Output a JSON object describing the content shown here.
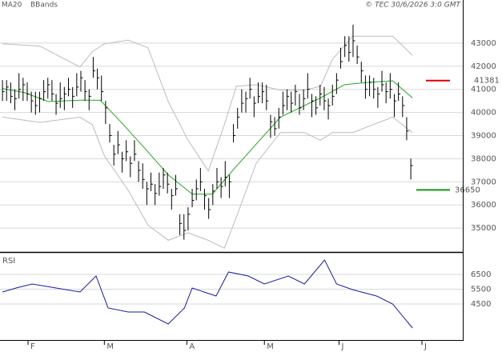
{
  "header": {
    "copyright": "© TEC 30/6/2026 3:0 GMT"
  },
  "chart_data": [
    {
      "type": "ohlc",
      "xlim": [
        -0.6,
        111.6
      ],
      "ylim": [
        34000,
        44450
      ],
      "yticks": [
        35000,
        36000,
        37000,
        38000,
        39000,
        40000,
        41000,
        42000,
        43000
      ],
      "grid": true,
      "bar_color": "#000000",
      "high": [
        41400,
        41400,
        41300,
        41000,
        41700,
        41500,
        41300,
        40900,
        40900,
        40900,
        41400,
        41500,
        41400,
        40800,
        41300,
        41100,
        41500,
        41100,
        41700,
        41800,
        41400,
        41000,
        42400,
        41900,
        41600,
        40500,
        39500,
        38600,
        39200,
        38300,
        38800,
        38100,
        38800,
        37900,
        37800,
        37000,
        37400,
        36900,
        37400,
        37600,
        37400,
        36700,
        37300,
        35600,
        35600,
        35900,
        36700,
        37100,
        37600,
        36700,
        36300,
        36900,
        37600,
        37200,
        37900,
        37300,
        39500,
        40200,
        41000,
        40900,
        41500,
        40700,
        41300,
        41300,
        41200,
        39900,
        39800,
        40200,
        40900,
        41000,
        40900,
        41200,
        40800,
        41000,
        41700,
        40800,
        40700,
        41200,
        41100,
        40600,
        41200,
        41700,
        42800,
        43300,
        43300,
        43800,
        42900,
        42200,
        41600,
        41600,
        41500,
        41100,
        41800,
        41300,
        41700,
        40800,
        41300,
        40700,
        39800,
        38000
      ],
      "low": [
        40500,
        40500,
        40400,
        40100,
        40600,
        40500,
        40500,
        40000,
        39900,
        40000,
        40500,
        40600,
        40500,
        39900,
        40200,
        40100,
        40700,
        40200,
        40700,
        40900,
        40500,
        40100,
        41500,
        41000,
        40500,
        39500,
        38700,
        37700,
        38200,
        37400,
        37900,
        37200,
        37900,
        37000,
        36700,
        36000,
        36600,
        36000,
        36400,
        36700,
        36500,
        35800,
        36400,
        34700,
        34500,
        34900,
        35900,
        36200,
        36600,
        35800,
        35400,
        36000,
        36700,
        36300,
        36800,
        36300,
        38700,
        39300,
        40000,
        40000,
        40600,
        39800,
        40400,
        40400,
        40100,
        38900,
        39000,
        39300,
        39900,
        40100,
        40000,
        40300,
        39900,
        40100,
        40600,
        39800,
        39900,
        40300,
        40100,
        39700,
        40300,
        40800,
        41900,
        42400,
        42200,
        42400,
        42100,
        41300,
        40600,
        40700,
        40600,
        40200,
        40900,
        40400,
        40600,
        39800,
        40500,
        39800,
        38800,
        37100
      ],
      "close": [
        40900,
        41100,
        40700,
        40600,
        41000,
        41200,
        40800,
        40500,
        40300,
        40600,
        40900,
        41200,
        40800,
        40400,
        40600,
        40800,
        41000,
        40700,
        41100,
        41500,
        40900,
        40700,
        41800,
        41500,
        40900,
        40200,
        39000,
        38200,
        38600,
        38000,
        38300,
        37800,
        38200,
        37500,
        37100,
        36700,
        36900,
        36500,
        36800,
        37300,
        36900,
        36400,
        36700,
        35200,
        34900,
        35600,
        36200,
        36700,
        37000,
        36400,
        35800,
        36600,
        37000,
        36800,
        37200,
        37000,
        39000,
        39800,
        40400,
        40600,
        41000,
        40400,
        40700,
        40900,
        40500,
        39600,
        39300,
        39800,
        40300,
        40700,
        40400,
        40900,
        40200,
        40600,
        41000,
        40500,
        40200,
        40800,
        40500,
        40300,
        40700,
        41400,
        42200,
        42900,
        42600,
        43100,
        42400,
        41800,
        41000,
        41300,
        41000,
        40800,
        41200,
        40900,
        41000,
        40500,
        40800,
        40300,
        39200,
        37700
      ],
      "series": [
        {
          "name": "MA20",
          "color": "#22aa22",
          "x": [
            0,
            5.2,
            11.1,
            18.8,
            23.7,
            28.5,
            34.4,
            40.2,
            46,
            50.9,
            55.7,
            61.5,
            67.4,
            73.2,
            77.1,
            82.9,
            88.7,
            94.6,
            99.4
          ],
          "values": [
            41030,
            40870,
            40470,
            40530,
            40530,
            39630,
            38470,
            37300,
            36470,
            36470,
            37470,
            38630,
            39800,
            40300,
            40630,
            41200,
            41300,
            41370,
            40630
          ]
        },
        {
          "name": "BBands",
          "color": "#bbbbbb",
          "x": [
            0,
            9.1,
            18.8,
            21.8,
            24.7,
            30.5,
            35.3,
            40.2,
            45,
            49.9,
            53.8,
            56.7,
            61.5,
            67.4,
            73.2,
            77.1,
            80,
            84.9,
            94.6,
            99.4
          ],
          "upper": [
            42970,
            42870,
            41970,
            42630,
            42970,
            43130,
            42800,
            40470,
            38800,
            37470,
            39470,
            41130,
            41200,
            40970,
            40970,
            41130,
            42300,
            43300,
            43300,
            42470
          ],
          "lower": [
            39800,
            39570,
            39800,
            39470,
            38130,
            36630,
            35130,
            34470,
            34800,
            34470,
            34130,
            35470,
            37800,
            39130,
            39130,
            38800,
            39130,
            39130,
            39800,
            39130
          ]
        }
      ],
      "levels": [
        {
          "value": 41381,
          "color": "#dd0000"
        },
        {
          "value": 36650,
          "color": "#119911"
        }
      ]
    },
    {
      "type": "line",
      "title": "RSI",
      "xlim": [
        -0.6,
        111.6
      ],
      "ylim": [
        2070,
        7850
      ],
      "yticks": [
        4500,
        5500,
        6500
      ],
      "grid": true,
      "xticks": [
        {
          "value": 6.2,
          "label": "F"
        },
        {
          "value": 24.7,
          "label": "M"
        },
        {
          "value": 44.7,
          "label": "A"
        },
        {
          "value": 63.5,
          "label": "M"
        },
        {
          "value": 81.6,
          "label": "J"
        },
        {
          "value": 101.7,
          "label": "J"
        }
      ],
      "series": [
        {
          "name": "RSI",
          "color": "#1a1aaa",
          "x": [
            0,
            3.3,
            7.2,
            13,
            18.8,
            22.7,
            25.6,
            30.5,
            34.4,
            40.2,
            44.1,
            46,
            51.8,
            54.8,
            59.6,
            63.5,
            69.3,
            73.2,
            78.1,
            81,
            84.9,
            90.7,
            94.6,
            99.4
          ],
          "values": [
            5310,
            5580,
            5850,
            5580,
            5310,
            6390,
            4230,
            3960,
            3960,
            3150,
            4230,
            5580,
            5040,
            6660,
            6390,
            5850,
            6390,
            5850,
            7470,
            5850,
            5470,
            5040,
            4500,
            2880
          ]
        }
      ]
    }
  ]
}
